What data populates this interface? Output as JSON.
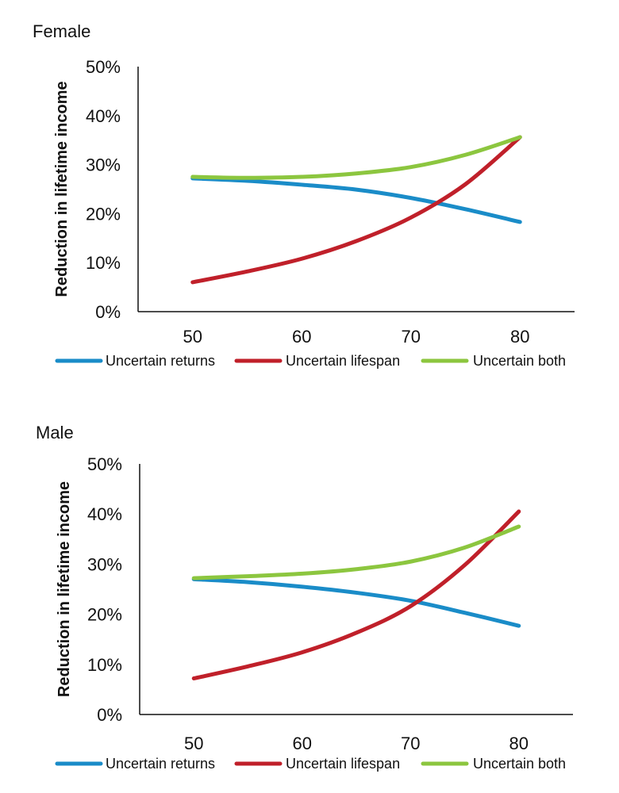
{
  "chart_data": [
    {
      "type": "line",
      "title": "Female",
      "xlabel": "",
      "ylabel": "Reduction in lifetime income",
      "x": [
        50,
        55,
        60,
        65,
        70,
        75,
        80
      ],
      "x_ticks": [
        "50",
        "60",
        "70",
        "80"
      ],
      "y_ticks": [
        "0%",
        "10%",
        "20%",
        "30%",
        "40%",
        "50%"
      ],
      "xlim": [
        45,
        85
      ],
      "ylim": [
        0,
        50
      ],
      "grid": false,
      "legend_position": "bottom",
      "series": [
        {
          "name": "Uncertain returns",
          "color": "#1a8cc8",
          "values": [
            27.2,
            26.7,
            25.9,
            24.9,
            23.2,
            20.9,
            18.3
          ]
        },
        {
          "name": "Uncertain lifespan",
          "color": "#c0202a",
          "values": [
            6.0,
            8.2,
            10.8,
            14.4,
            19.2,
            26.0,
            35.6
          ]
        },
        {
          "name": "Uncertain both",
          "color": "#8cc63f",
          "values": [
            27.5,
            27.3,
            27.5,
            28.2,
            29.5,
            32.0,
            35.6
          ]
        }
      ]
    },
    {
      "type": "line",
      "title": "Male",
      "xlabel": "",
      "ylabel": "Reduction in lifetime income",
      "x": [
        50,
        55,
        60,
        65,
        70,
        75,
        80
      ],
      "x_ticks": [
        "50",
        "60",
        "70",
        "80"
      ],
      "y_ticks": [
        "0%",
        "10%",
        "20%",
        "30%",
        "40%",
        "50%"
      ],
      "xlim": [
        45,
        85
      ],
      "ylim": [
        0,
        50
      ],
      "grid": false,
      "legend_position": "bottom",
      "series": [
        {
          "name": "Uncertain returns",
          "color": "#1a8cc8",
          "values": [
            27.0,
            26.4,
            25.5,
            24.3,
            22.7,
            20.3,
            17.7
          ]
        },
        {
          "name": "Uncertain lifespan",
          "color": "#c0202a",
          "values": [
            7.2,
            9.6,
            12.4,
            16.3,
            21.6,
            29.8,
            40.5
          ]
        },
        {
          "name": "Uncertain both",
          "color": "#8cc63f",
          "values": [
            27.2,
            27.6,
            28.1,
            29.0,
            30.5,
            33.3,
            37.5
          ]
        }
      ]
    }
  ]
}
